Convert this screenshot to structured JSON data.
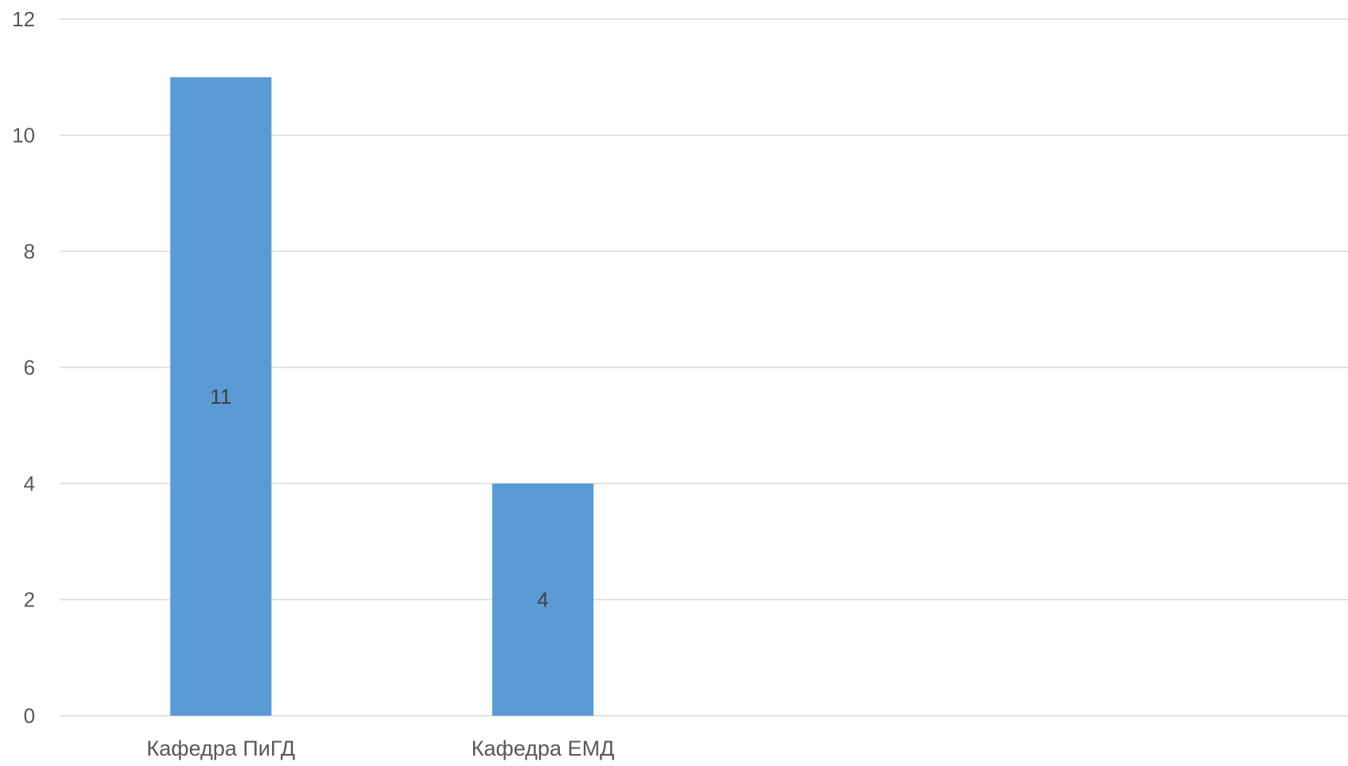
{
  "chart_data": {
    "type": "bar",
    "categories": [
      "Кафедра ПиГД",
      "Кафедра ЕМД"
    ],
    "series": [
      {
        "values": [
          11,
          4
        ],
        "color": "#5B9BD5"
      }
    ],
    "data_labels": [
      "11",
      "4"
    ],
    "title": "",
    "xlabel": "",
    "ylabel": "",
    "ylim": [
      0,
      12
    ],
    "yticks": [
      0,
      2,
      4,
      6,
      8,
      10,
      12
    ],
    "ytick_labels": [
      "0",
      "2",
      "4",
      "6",
      "8",
      "10",
      "12"
    ],
    "grid": true,
    "legend": "none",
    "colors": {
      "bar": "#5B9BD5",
      "grid": "#D9D9D9",
      "text": "#595959",
      "data_label": "#404040"
    }
  }
}
